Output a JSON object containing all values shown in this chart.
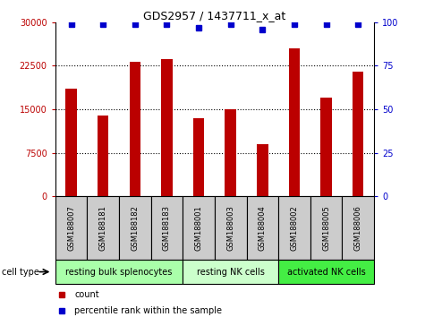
{
  "title": "GDS2957 / 1437711_x_at",
  "samples": [
    "GSM188007",
    "GSM188181",
    "GSM188182",
    "GSM188183",
    "GSM188001",
    "GSM188003",
    "GSM188004",
    "GSM188002",
    "GSM188005",
    "GSM188006"
  ],
  "counts": [
    18500,
    14000,
    23200,
    23700,
    13500,
    15000,
    9000,
    25500,
    17000,
    21500
  ],
  "percentile_ranks": [
    99,
    99,
    99,
    99,
    97,
    99,
    96,
    99,
    99,
    99
  ],
  "bar_color": "#bb0000",
  "dot_color": "#0000cc",
  "ylim_left": [
    0,
    30000
  ],
  "ylim_right": [
    0,
    100
  ],
  "yticks_left": [
    0,
    7500,
    15000,
    22500,
    30000
  ],
  "yticks_right": [
    0,
    25,
    50,
    75,
    100
  ],
  "groups": [
    {
      "label": "resting bulk splenocytes",
      "start": 0,
      "end": 4,
      "color": "#aaffaa"
    },
    {
      "label": "resting NK cells",
      "start": 4,
      "end": 7,
      "color": "#ccffcc"
    },
    {
      "label": "activated NK cells",
      "start": 7,
      "end": 10,
      "color": "#44ee44"
    }
  ],
  "cell_type_label": "cell type",
  "legend_count_label": "count",
  "legend_percentile_label": "percentile rank within the sample",
  "sample_box_color": "#cccccc",
  "bg_color": "#ffffff"
}
